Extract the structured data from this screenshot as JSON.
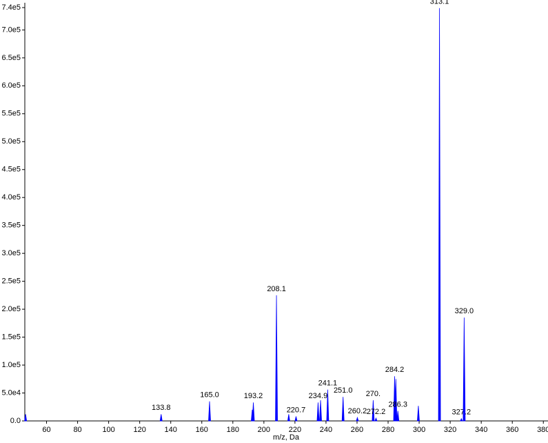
{
  "chart_data": {
    "type": "stick",
    "x_label": "m/z, Da",
    "color": "#0000ff",
    "x": [
      46.5,
      133.8,
      165.0,
      192.5,
      193.2,
      208.1,
      216.0,
      220.7,
      234.9,
      236.5,
      241.1,
      251.0,
      260.2,
      270.4,
      272.2,
      284.2,
      285.0,
      286.3,
      299.5,
      313.1,
      327.2,
      329.0
    ],
    "values": [
      12000,
      12000,
      35000,
      20000,
      33000,
      225000,
      12000,
      8000,
      33000,
      37000,
      56000,
      43000,
      6000,
      37000,
      5000,
      80000,
      75000,
      18000,
      27000,
      739000,
      4000,
      185000
    ],
    "labels": [
      null,
      "133.8",
      "165.0",
      null,
      "193.2",
      "208.1",
      null,
      "220.7",
      "234.9",
      null,
      "241.1",
      "251.0",
      "260.2",
      "270.",
      "272.2",
      "284.2",
      null,
      "286.3",
      null,
      "313.1",
      "327.2",
      "329.0"
    ],
    "xlim": [
      46,
      383
    ],
    "xticks": [
      60,
      80,
      100,
      120,
      140,
      160,
      180,
      200,
      220,
      240,
      260,
      280,
      300,
      320,
      340,
      360,
      380
    ],
    "ylim": [
      0,
      740000
    ],
    "yticks": [
      {
        "value": 0,
        "label": "0.0"
      },
      {
        "value": 50000,
        "label": "5.0e4"
      },
      {
        "value": 100000,
        "label": "1.0e5"
      },
      {
        "value": 150000,
        "label": "1.5e5"
      },
      {
        "value": 200000,
        "label": "2.0e5"
      },
      {
        "value": 250000,
        "label": "2.5e5"
      },
      {
        "value": 300000,
        "label": "3.0e5"
      },
      {
        "value": 350000,
        "label": "3.5e5"
      },
      {
        "value": 400000,
        "label": "4.0e5"
      },
      {
        "value": 450000,
        "label": "4.5e5"
      },
      {
        "value": 500000,
        "label": "5.0e5"
      },
      {
        "value": 550000,
        "label": "5.5e5"
      },
      {
        "value": 600000,
        "label": "6.0e5"
      },
      {
        "value": 650000,
        "label": "6.5e5"
      },
      {
        "value": 700000,
        "label": "7.0e5"
      },
      {
        "value": 740000,
        "label": "7.4e5"
      }
    ]
  }
}
